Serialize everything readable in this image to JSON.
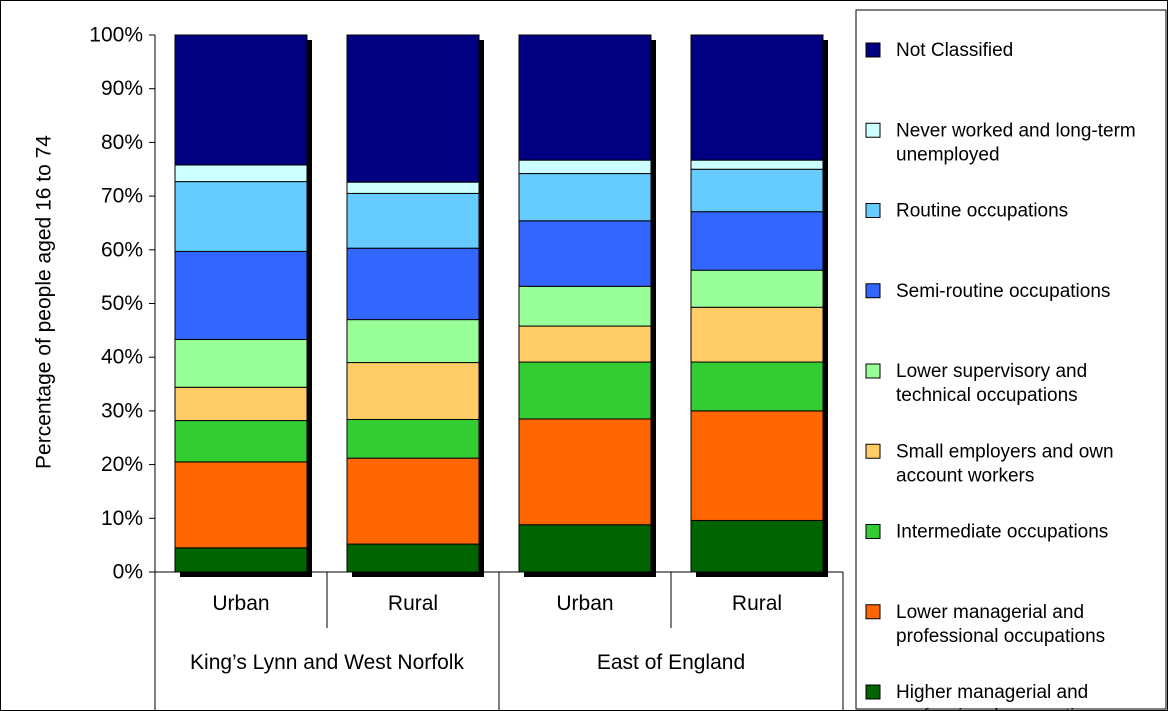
{
  "chart_data": {
    "type": "bar",
    "stacked": true,
    "percent": true,
    "ylabel": "Percentage of people aged 16 to 74",
    "xlabel": "",
    "ylim": [
      0,
      100
    ],
    "yticks": [
      "0%",
      "10%",
      "20%",
      "30%",
      "40%",
      "50%",
      "60%",
      "70%",
      "80%",
      "90%",
      "100%"
    ],
    "grid": false,
    "legend_position": "right",
    "categories": [
      "Urban",
      "Rural",
      "Urban",
      "Rural"
    ],
    "groups": [
      {
        "label": "King’s Lynn and West Norfolk",
        "categories": [
          "Urban",
          "Rural"
        ]
      },
      {
        "label": "East of England",
        "categories": [
          "Urban",
          "Rural"
        ]
      }
    ],
    "series": [
      {
        "name": "Higher managerial and professional occupations",
        "color": "#006400",
        "values": [
          4.5,
          5.2,
          8.8,
          9.6
        ]
      },
      {
        "name": "Lower managerial and professional occupations",
        "color": "#ff6600",
        "values": [
          16.0,
          16.0,
          19.7,
          20.4
        ]
      },
      {
        "name": "Intermediate occupations",
        "color": "#33cc33",
        "values": [
          7.7,
          7.2,
          10.6,
          9.1
        ]
      },
      {
        "name": "Small employers and own account workers",
        "color": "#ffcc66",
        "values": [
          6.2,
          10.6,
          6.7,
          10.2
        ]
      },
      {
        "name": "Lower supervisory and technical occupations",
        "color": "#99ff99",
        "values": [
          8.9,
          8.0,
          7.4,
          6.9
        ]
      },
      {
        "name": "Semi-routine occupations",
        "color": "#3366ff",
        "values": [
          16.4,
          13.3,
          12.2,
          10.9
        ]
      },
      {
        "name": "Routine occupations",
        "color": "#66ccff",
        "values": [
          13.0,
          10.2,
          8.8,
          7.9
        ]
      },
      {
        "name": "Never worked and long-term unemployed",
        "color": "#ccffff",
        "values": [
          3.1,
          2.1,
          2.5,
          1.7
        ]
      },
      {
        "name": "Not Classified",
        "color": "#000080",
        "values": [
          24.2,
          27.4,
          23.3,
          23.3
        ]
      }
    ]
  }
}
